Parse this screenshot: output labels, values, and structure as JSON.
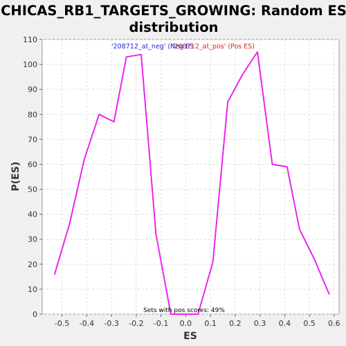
{
  "chart_data": {
    "type": "line",
    "title_line1": "CHICAS_RB1_TARGETS_GROWING: Random ES",
    "title_line2": "distribution",
    "xlabel": "ES",
    "ylabel": "P(ES)",
    "xlim": [
      -0.58,
      0.62
    ],
    "ylim": [
      0,
      110
    ],
    "x_ticks": [
      -0.5,
      -0.4,
      -0.3,
      -0.2,
      -0.1,
      0.0,
      0.1,
      0.2,
      0.3,
      0.4,
      0.5,
      0.6
    ],
    "x_tick_labels": [
      "-0.5",
      "-0.4",
      "-0.3",
      "-0.2",
      "-0.1",
      "0.0",
      "0.1",
      "0.2",
      "0.3",
      "0.4",
      "0.5",
      "0.6"
    ],
    "y_ticks": [
      0,
      10,
      20,
      30,
      40,
      50,
      60,
      70,
      80,
      90,
      100,
      110
    ],
    "y_tick_labels": [
      "0",
      "10",
      "20",
      "30",
      "40",
      "50",
      "60",
      "70",
      "80",
      "90",
      "100",
      "110"
    ],
    "grid": true,
    "series": [
      {
        "color": "#ee22ee",
        "x": [
          -0.53,
          -0.47,
          -0.41,
          -0.35,
          -0.29,
          -0.24,
          -0.18,
          -0.12,
          -0.06,
          0.0,
          0.05,
          0.11,
          0.17,
          0.23,
          0.29,
          0.35,
          0.41,
          0.46,
          0.52,
          0.58
        ],
        "y": [
          16,
          36,
          62,
          80,
          77,
          103,
          104,
          32,
          0,
          0,
          0,
          21,
          85,
          96,
          105,
          60,
          59,
          34,
          22,
          8
        ]
      }
    ],
    "legend": [
      {
        "text": "'208712_at_neg' (Neg ES)",
        "color": "#2222dd"
      },
      {
        "text": "'208712_at_pos' (Pos ES)",
        "color": "#dd2222"
      }
    ],
    "annotation": "Sets with pos scores: 49%"
  }
}
